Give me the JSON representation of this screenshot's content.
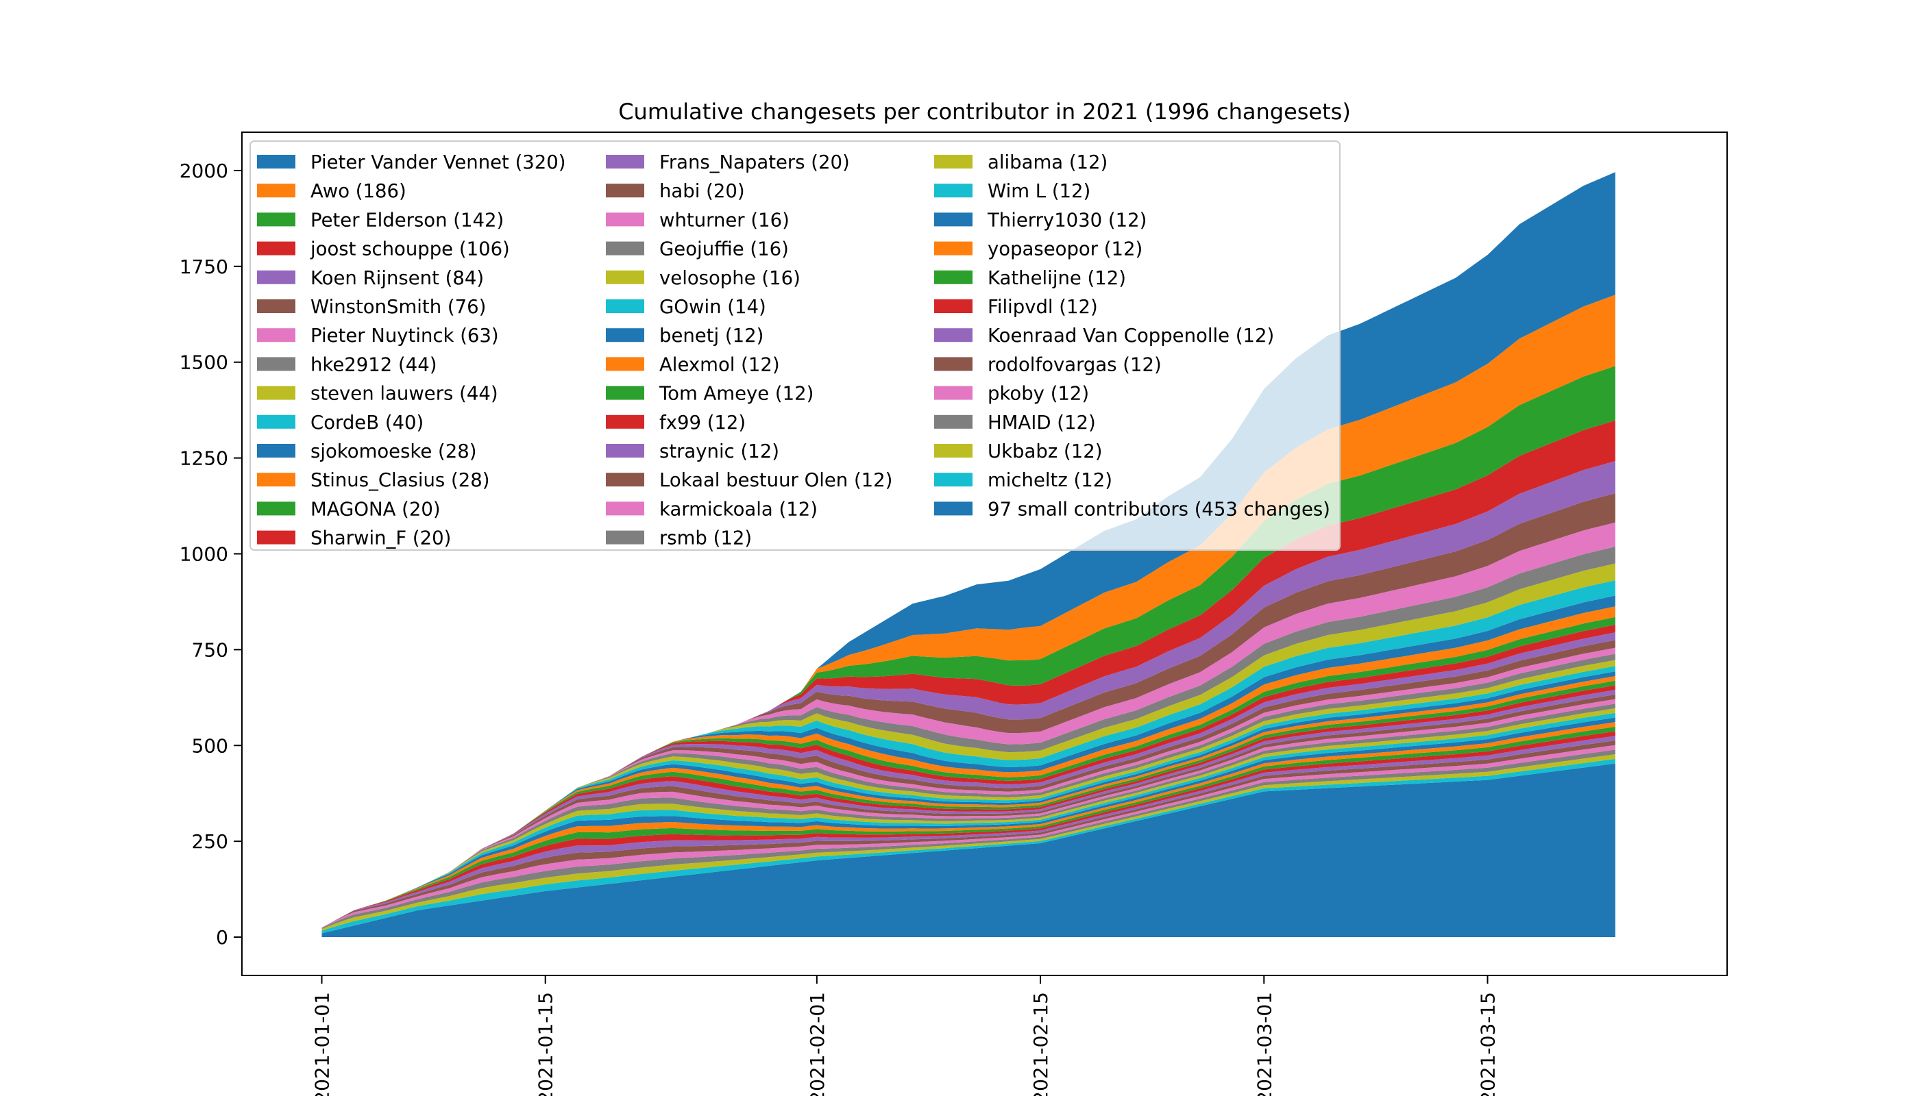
{
  "chart_data": {
    "type": "area",
    "stacked": true,
    "title": "Cumulative changesets per contributor in 2021 (1996 changesets)",
    "xlabel": "",
    "ylabel": "",
    "ylim": [
      -100,
      2100
    ],
    "yticks": [
      0,
      250,
      500,
      750,
      1000,
      1250,
      1500,
      1750,
      2000
    ],
    "xlim": [
      "2020-12-27",
      "2021-03-30"
    ],
    "xticks": [
      "2021-01-01",
      "2021-01-15",
      "2021-02-01",
      "2021-02-15",
      "2021-03-01",
      "2021-03-15"
    ],
    "x_range": [
      "2021-01-01",
      "2021-03-23"
    ],
    "legend_position": "upper-left",
    "grid": false,
    "stack_order": "legend order listed bottom-to-top in reverse; '97 small contributors' at the bottom",
    "series": [
      {
        "label": "Pieter Vander Vennet (320)",
        "color": "#1f77b4"
      },
      {
        "label": "Awo (186)",
        "color": "#ff7f0e"
      },
      {
        "label": "Peter Elderson (142)",
        "color": "#2ca02c"
      },
      {
        "label": "joost schouppe (106)",
        "color": "#d62728"
      },
      {
        "label": "Koen Rijnsent (84)",
        "color": "#9467bd"
      },
      {
        "label": "WinstonSmith (76)",
        "color": "#8c564b"
      },
      {
        "label": "Pieter Nuytinck (63)",
        "color": "#e377c2"
      },
      {
        "label": "hke2912 (44)",
        "color": "#7f7f7f"
      },
      {
        "label": "steven lauwers (44)",
        "color": "#bcbd22"
      },
      {
        "label": "CordeB (40)",
        "color": "#17becf"
      },
      {
        "label": "sjokomoeske (28)",
        "color": "#1f77b4"
      },
      {
        "label": "Stinus_Clasius (28)",
        "color": "#ff7f0e"
      },
      {
        "label": "MAGONA (20)",
        "color": "#2ca02c"
      },
      {
        "label": "Sharwin_F (20)",
        "color": "#d62728"
      },
      {
        "label": "Frans_Napaters (20)",
        "color": "#9467bd"
      },
      {
        "label": "habi (20)",
        "color": "#8c564b"
      },
      {
        "label": "whturner (16)",
        "color": "#e377c2"
      },
      {
        "label": "Geojuffie (16)",
        "color": "#7f7f7f"
      },
      {
        "label": "velosophe (16)",
        "color": "#bcbd22"
      },
      {
        "label": "GOwin (14)",
        "color": "#17becf"
      },
      {
        "label": "benetj (12)",
        "color": "#1f77b4"
      },
      {
        "label": "Alexmol (12)",
        "color": "#ff7f0e"
      },
      {
        "label": "Tom Ameye (12)",
        "color": "#2ca02c"
      },
      {
        "label": "fx99 (12)",
        "color": "#d62728"
      },
      {
        "label": "straynic (12)",
        "color": "#9467bd"
      },
      {
        "label": "Lokaal bestuur Olen (12)",
        "color": "#8c564b"
      },
      {
        "label": "karmickoala (12)",
        "color": "#e377c2"
      },
      {
        "label": "rsmb (12)",
        "color": "#7f7f7f"
      },
      {
        "label": "alibama (12)",
        "color": "#bcbd22"
      },
      {
        "label": "Wim L (12)",
        "color": "#17becf"
      },
      {
        "label": "Thierry1030 (12)",
        "color": "#1f77b4"
      },
      {
        "label": "yopaseopor (12)",
        "color": "#ff7f0e"
      },
      {
        "label": "Kathelijne (12)",
        "color": "#2ca02c"
      },
      {
        "label": "Filipvdl (12)",
        "color": "#d62728"
      },
      {
        "label": "Koenraad Van Coppenolle (12)",
        "color": "#9467bd"
      },
      {
        "label": "rodolfovargas (12)",
        "color": "#8c564b"
      },
      {
        "label": "pkoby (12)",
        "color": "#e377c2"
      },
      {
        "label": "HMAID (12)",
        "color": "#7f7f7f"
      },
      {
        "label": "Ukbabz (12)",
        "color": "#bcbd22"
      },
      {
        "label": "micheltz (12)",
        "color": "#17becf"
      },
      {
        "label": "97 small contributors (453 changes)",
        "color": "#1f77b4"
      }
    ],
    "cumulative_total": {
      "x": [
        "2021-01-01",
        "2021-01-03",
        "2021-01-05",
        "2021-01-07",
        "2021-01-09",
        "2021-01-11",
        "2021-01-13",
        "2021-01-15",
        "2021-01-17",
        "2021-01-19",
        "2021-01-21",
        "2021-01-23",
        "2021-01-25",
        "2021-01-27",
        "2021-01-29",
        "2021-01-31",
        "2021-02-01",
        "2021-02-03",
        "2021-02-05",
        "2021-02-07",
        "2021-02-09",
        "2021-02-11",
        "2021-02-13",
        "2021-02-15",
        "2021-02-17",
        "2021-02-19",
        "2021-02-21",
        "2021-02-23",
        "2021-02-25",
        "2021-02-27",
        "2021-03-01",
        "2021-03-03",
        "2021-03-05",
        "2021-03-07",
        "2021-03-09",
        "2021-03-11",
        "2021-03-13",
        "2021-03-15",
        "2021-03-17",
        "2021-03-19",
        "2021-03-21",
        "2021-03-23"
      ],
      "y": [
        25,
        70,
        95,
        130,
        170,
        230,
        270,
        330,
        390,
        420,
        470,
        510,
        530,
        555,
        590,
        640,
        700,
        770,
        820,
        870,
        890,
        920,
        930,
        960,
        1010,
        1060,
        1090,
        1150,
        1200,
        1300,
        1430,
        1510,
        1570,
        1600,
        1640,
        1680,
        1720,
        1780,
        1860,
        1910,
        1960,
        1996
      ]
    },
    "bottom_layer_97_small_contributors": {
      "x": [
        "2021-01-01",
        "2021-01-07",
        "2021-01-15",
        "2021-02-01",
        "2021-02-15",
        "2021-03-01",
        "2021-03-15",
        "2021-03-23"
      ],
      "y": [
        10,
        70,
        120,
        200,
        245,
        380,
        410,
        453
      ]
    }
  }
}
